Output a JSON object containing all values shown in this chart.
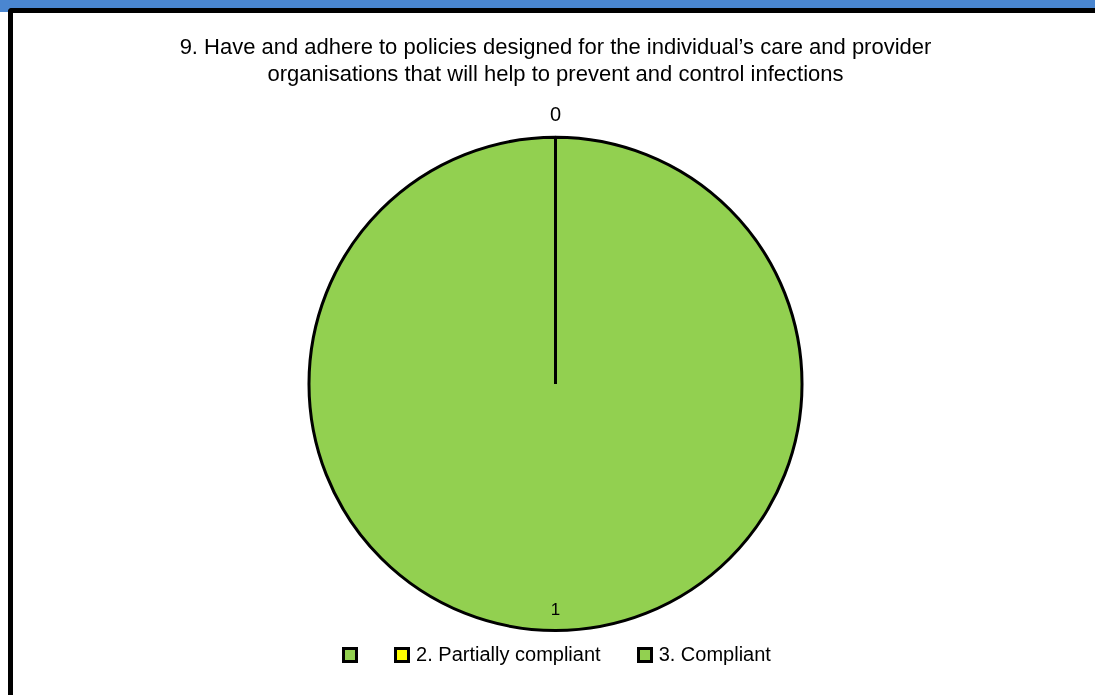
{
  "chart_data": {
    "type": "pie",
    "title": "9. Have and adhere to policies designed for the individual’s care and provider organisations that will help to prevent and control infections",
    "categories": [
      null,
      "2. Partially compliant",
      "3. Compliant"
    ],
    "values": [
      0,
      0,
      1
    ],
    "colors": [
      "#92d050",
      "#ffff00",
      "#92d050"
    ],
    "value_labels": [
      null,
      "0",
      "1"
    ],
    "legend": "bottom"
  }
}
